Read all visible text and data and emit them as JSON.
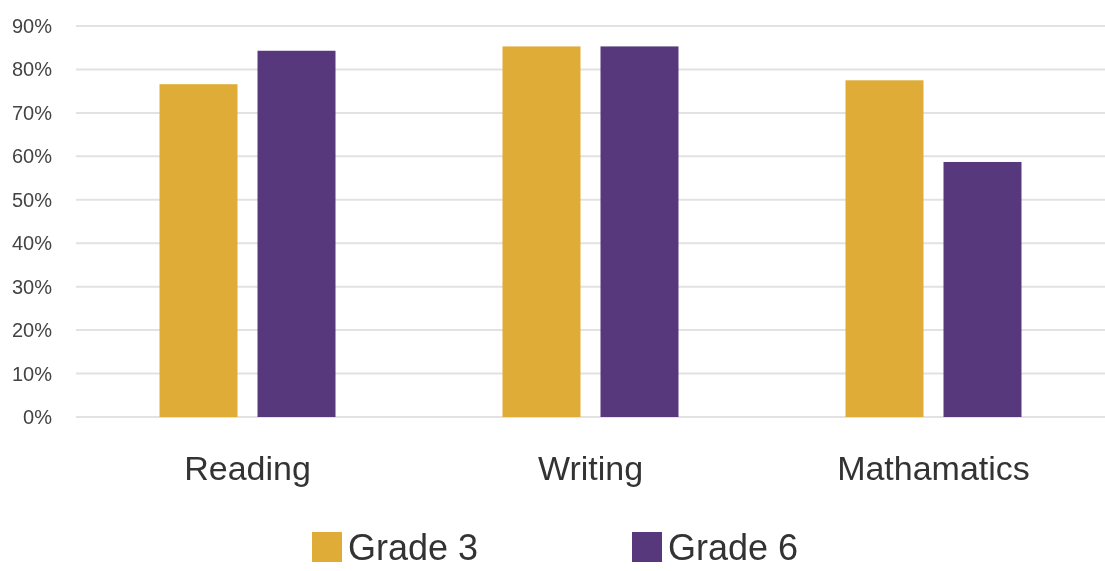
{
  "chart_data": {
    "type": "bar",
    "categories": [
      "Reading",
      "Writing",
      "Mathamatics"
    ],
    "series": [
      {
        "name": "Grade 3",
        "color": "#dfac37",
        "values": [
          76.6,
          85.3,
          77.5
        ]
      },
      {
        "name": "Grade 6",
        "color": "#58387d",
        "values": [
          84.3,
          85.3,
          58.7
        ]
      }
    ],
    "ylim": [
      0,
      90
    ],
    "yticks": [
      {
        "value": 0,
        "label": "0%"
      },
      {
        "value": 10,
        "label": "10%"
      },
      {
        "value": 20,
        "label": "20%"
      },
      {
        "value": 30,
        "label": "30%"
      },
      {
        "value": 40,
        "label": "40%"
      },
      {
        "value": 50,
        "label": "50%"
      },
      {
        "value": 60,
        "label": "60%"
      },
      {
        "value": 70,
        "label": "70%"
      },
      {
        "value": 80,
        "label": "80%"
      },
      {
        "value": 90,
        "label": "90%"
      }
    ],
    "grid": "y",
    "legend": "bottom"
  }
}
